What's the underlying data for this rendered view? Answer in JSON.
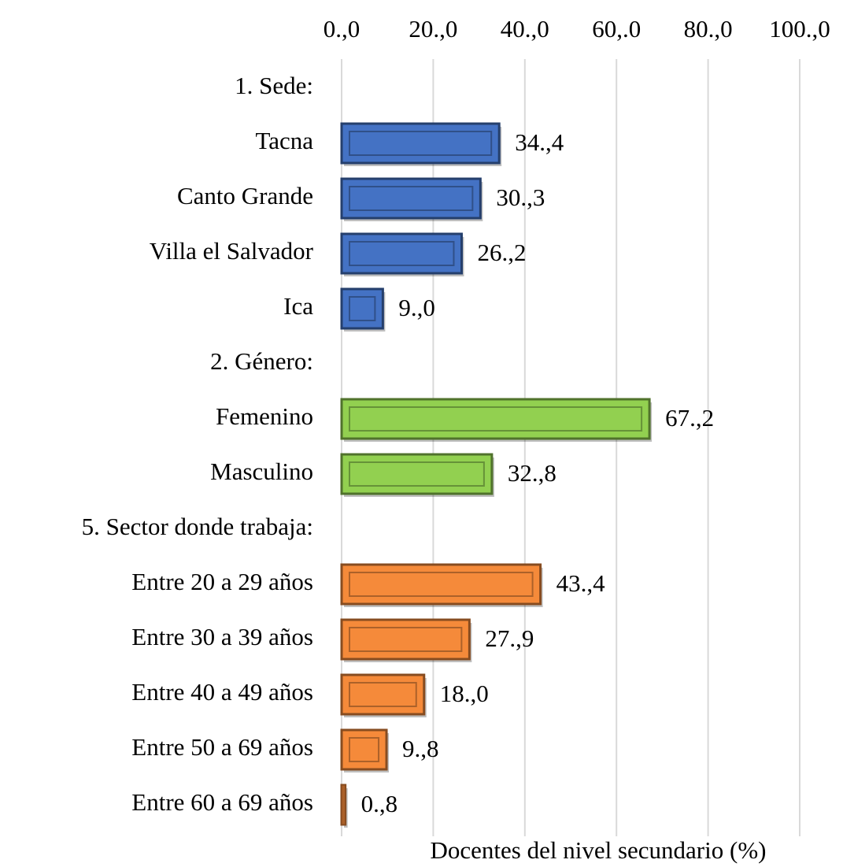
{
  "chart_data": {
    "type": "bar",
    "orientation": "horizontal",
    "xlabel": "Docentes del nivel secundario (%)",
    "categories": [
      "1. Sede:",
      "Tacna",
      "Canto Grande",
      "Villa el Salvador",
      "Ica",
      "2. Género:",
      "Femenino",
      "Masculino",
      "5. Sector donde trabaja:",
      "Entre 20 a 29 años",
      "Entre 30 a 39 años",
      "Entre 40 a 49 años",
      "Entre 50 a 69 años",
      "Entre 60 a 69 años"
    ],
    "values": [
      null,
      34.4,
      30.3,
      26.2,
      9.0,
      null,
      67.2,
      32.8,
      null,
      43.4,
      27.9,
      18.0,
      9.8,
      0.8
    ],
    "value_labels": [
      null,
      "34.,4",
      "30.,3",
      "26.,2",
      "9.,0",
      null,
      "67.,2",
      "32.,8",
      null,
      "43.,4",
      "27.,9",
      "18.,0",
      "9.,8",
      "0.,8"
    ],
    "colors": [
      null,
      "#4472c4",
      "#4472c4",
      "#4472c4",
      "#4472c4",
      null,
      "#92d050",
      "#92d050",
      null,
      "#f58a3a",
      "#f58a3a",
      "#f58a3a",
      "#f58a3a",
      "#f58a3a"
    ],
    "xlim": [
      0,
      100
    ],
    "xticks": [
      {
        "value": 0,
        "label": "0.,0"
      },
      {
        "value": 20,
        "label": "20.,0"
      },
      {
        "value": 40,
        "label": "40.,0"
      },
      {
        "value": 60,
        "label": "60,.0"
      },
      {
        "value": 80,
        "label": "80.,0"
      },
      {
        "value": 100,
        "label": "100.,0"
      }
    ],
    "grid": true
  }
}
